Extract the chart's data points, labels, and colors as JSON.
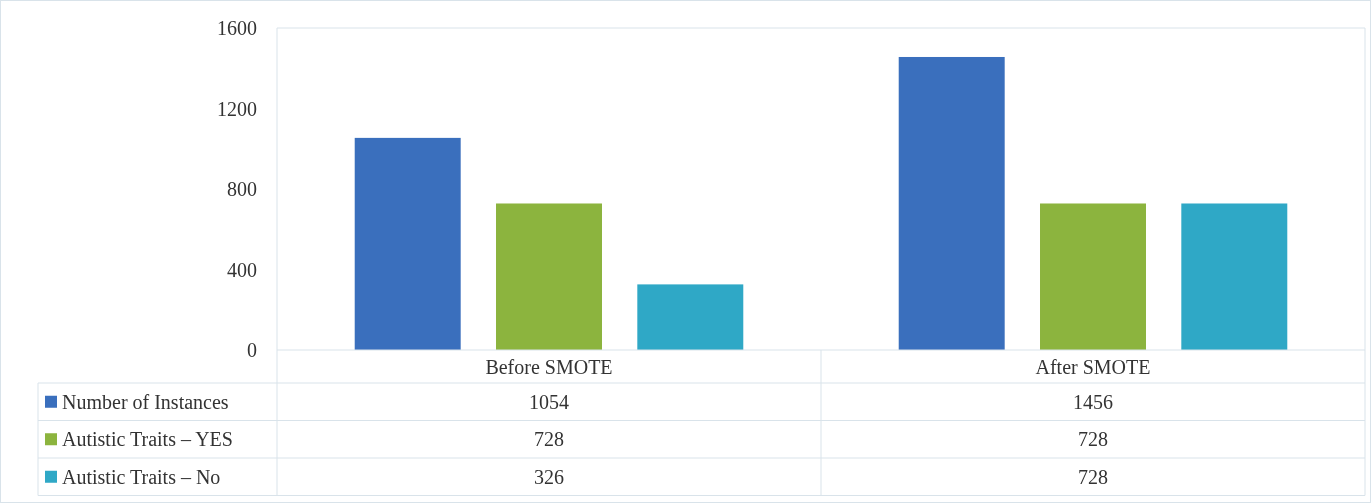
{
  "chart_data": {
    "type": "bar",
    "categories": [
      "Before SMOTE",
      "After SMOTE"
    ],
    "series": [
      {
        "name": "Number of Instances",
        "color": "#3a6fbd",
        "values": [
          1054,
          1456
        ]
      },
      {
        "name": "Autistic Traits – YES",
        "color": "#8cb43e",
        "values": [
          728,
          728
        ]
      },
      {
        "name": "Autistic Traits – No",
        "color": "#2fa8c6",
        "values": [
          326,
          728
        ]
      }
    ],
    "ylim": [
      0,
      1600
    ],
    "yticks": [
      0,
      400,
      800,
      1200,
      1600
    ],
    "grid": false,
    "legend": "bottom",
    "data_labels": true
  }
}
